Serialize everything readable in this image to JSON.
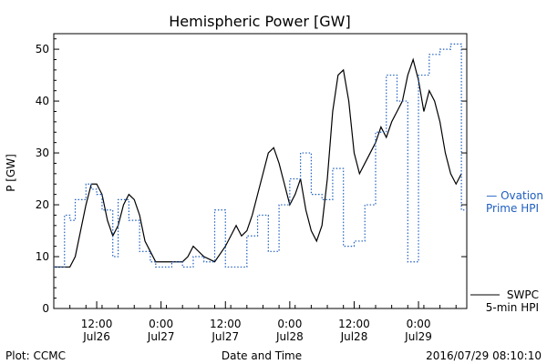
{
  "chart_data": {
    "type": "line",
    "title": "Hemispheric Power [GW]",
    "xlabel": "Date and Time",
    "ylabel": "P [GW]",
    "ylim": [
      0,
      53
    ],
    "xlim_hours_label_span": [
      0,
      1
    ],
    "yticks": [
      0,
      10,
      20,
      30,
      40,
      50
    ],
    "xticks": [
      {
        "time": "12:00",
        "date": "Jul26"
      },
      {
        "time": "0:00",
        "date": "Jul27"
      },
      {
        "time": "12:00",
        "date": "Jul27"
      },
      {
        "time": "0:00",
        "date": "Jul28"
      },
      {
        "time": "12:00",
        "date": "Jul28"
      },
      {
        "time": "0:00",
        "date": "Jul29"
      }
    ],
    "x_range": [
      "2016-07-26 04:00",
      "2016-07-29 09:00"
    ],
    "series": [
      {
        "name": "SWPC 5-min HPI",
        "style": "solid",
        "color": "#000000",
        "x": [
          "2016-07-26 04:00",
          "2016-07-26 07:00",
          "2016-07-26 08:00",
          "2016-07-26 09:00",
          "2016-07-26 10:00",
          "2016-07-26 11:00",
          "2016-07-26 12:00",
          "2016-07-26 13:00",
          "2016-07-26 14:00",
          "2016-07-26 15:00",
          "2016-07-26 16:00",
          "2016-07-26 17:00",
          "2016-07-26 18:00",
          "2016-07-26 19:00",
          "2016-07-26 20:00",
          "2016-07-26 21:00",
          "2016-07-26 22:00",
          "2016-07-26 23:00",
          "2016-07-27 00:00",
          "2016-07-27 01:00",
          "2016-07-27 02:00",
          "2016-07-27 03:00",
          "2016-07-27 04:00",
          "2016-07-27 05:00",
          "2016-07-27 06:00",
          "2016-07-27 08:00",
          "2016-07-27 10:00",
          "2016-07-27 12:00",
          "2016-07-27 13:00",
          "2016-07-27 14:00",
          "2016-07-27 15:00",
          "2016-07-27 16:00",
          "2016-07-27 17:00",
          "2016-07-27 18:00",
          "2016-07-27 19:00",
          "2016-07-27 20:00",
          "2016-07-27 21:00",
          "2016-07-27 22:00",
          "2016-07-27 23:00",
          "2016-07-28 00:00",
          "2016-07-28 01:00",
          "2016-07-28 02:00",
          "2016-07-28 03:00",
          "2016-07-28 04:00",
          "2016-07-28 05:00",
          "2016-07-28 06:00",
          "2016-07-28 07:00",
          "2016-07-28 08:00",
          "2016-07-28 09:00",
          "2016-07-28 10:00",
          "2016-07-28 11:00",
          "2016-07-28 12:00",
          "2016-07-28 13:00",
          "2016-07-28 14:00",
          "2016-07-28 15:00",
          "2016-07-28 16:00",
          "2016-07-28 17:00",
          "2016-07-28 18:00",
          "2016-07-28 19:00",
          "2016-07-28 20:00",
          "2016-07-28 21:00",
          "2016-07-28 22:00",
          "2016-07-28 23:00",
          "2016-07-29 00:00",
          "2016-07-29 01:00",
          "2016-07-29 02:00",
          "2016-07-29 03:00",
          "2016-07-29 04:00",
          "2016-07-29 05:00",
          "2016-07-29 06:00",
          "2016-07-29 07:00",
          "2016-07-29 08:00"
        ],
        "values": [
          8,
          8,
          10,
          15,
          20,
          24,
          24,
          22,
          17,
          14,
          16,
          20,
          22,
          21,
          18,
          13,
          11,
          9,
          9,
          9,
          9,
          9,
          9,
          10,
          12,
          10,
          9,
          12,
          14,
          16,
          14,
          15,
          18,
          22,
          26,
          30,
          31,
          28,
          24,
          20,
          22,
          25,
          19,
          15,
          13,
          16,
          25,
          38,
          45,
          46,
          40,
          30,
          26,
          28,
          30,
          32,
          35,
          33,
          36,
          38,
          40,
          45,
          48,
          44,
          38,
          42,
          40,
          36,
          30,
          26,
          24,
          26
        ]
      },
      {
        "name": "Ovation Prime HPI",
        "style": "dotted-step",
        "color": "#1f5fbf",
        "x": [
          "2016-07-26 04:00",
          "2016-07-26 06:00",
          "2016-07-26 07:00",
          "2016-07-26 08:00",
          "2016-07-26 10:00",
          "2016-07-26 11:00",
          "2016-07-26 12:00",
          "2016-07-26 13:00",
          "2016-07-26 15:00",
          "2016-07-26 16:00",
          "2016-07-26 18:00",
          "2016-07-26 20:00",
          "2016-07-26 22:00",
          "2016-07-26 23:00",
          "2016-07-27 00:00",
          "2016-07-27 02:00",
          "2016-07-27 04:00",
          "2016-07-27 06:00",
          "2016-07-27 08:00",
          "2016-07-27 10:00",
          "2016-07-27 12:00",
          "2016-07-27 14:00",
          "2016-07-27 16:00",
          "2016-07-27 18:00",
          "2016-07-27 20:00",
          "2016-07-27 22:00",
          "2016-07-28 00:00",
          "2016-07-28 02:00",
          "2016-07-28 04:00",
          "2016-07-28 06:00",
          "2016-07-28 08:00",
          "2016-07-28 10:00",
          "2016-07-28 12:00",
          "2016-07-28 14:00",
          "2016-07-28 16:00",
          "2016-07-28 18:00",
          "2016-07-28 20:00",
          "2016-07-28 22:00",
          "2016-07-29 00:00",
          "2016-07-29 02:00",
          "2016-07-29 04:00",
          "2016-07-29 06:00",
          "2016-07-29 08:00"
        ],
        "values": [
          8,
          18,
          17,
          21,
          24,
          23,
          22,
          19,
          10,
          21,
          17,
          11,
          9,
          8,
          8,
          9,
          8,
          10,
          9,
          19,
          8,
          8,
          14,
          18,
          11,
          20,
          25,
          30,
          22,
          21,
          27,
          12,
          13,
          20,
          34,
          45,
          40,
          9,
          45,
          49,
          50,
          51,
          19
        ]
      }
    ],
    "legend": [
      {
        "name_line1": "— Ovation",
        "name_line2": "Prime HPI",
        "color": "#1f5fbf"
      },
      {
        "name_line1": "SWPC",
        "name_line2": "5-min HPI",
        "color": "#000000"
      }
    ],
    "footer_left": "Plot: CCMC",
    "footer_right": "2016/07/29 08:10:10"
  }
}
